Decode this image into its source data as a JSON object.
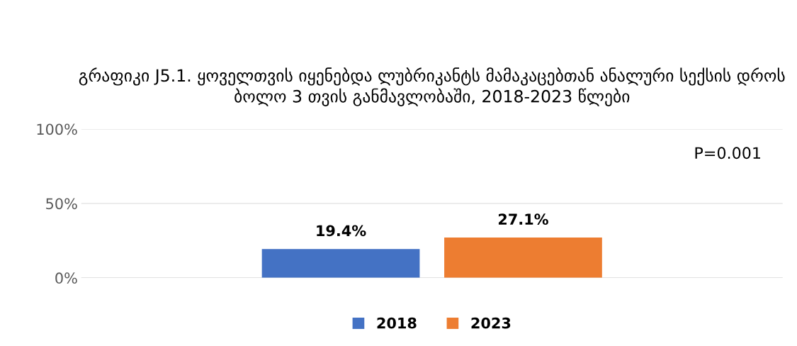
{
  "chart_data": {
    "type": "bar",
    "title": "გრაფიკი J5.1. ყოველთვის იყენებდა ლუბრიკანტს მამაკაცებთან ანალური სექსის დროს ბოლო 3 თვის განმავლობაში, 2018-2023 წლები",
    "categories": [
      null
    ],
    "series": [
      {
        "name": "2018",
        "color": "#4472c4",
        "values": [
          19.4
        ],
        "value_labels": [
          "19.4%"
        ]
      },
      {
        "name": "2023",
        "color": "#ed7d31",
        "values": [
          27.1
        ],
        "value_labels": [
          "27.1%"
        ]
      }
    ],
    "ylim": [
      0,
      100
    ],
    "yticks": [
      {
        "value": 0,
        "label": "0%"
      },
      {
        "value": 50,
        "label": "50%"
      },
      {
        "value": 100,
        "label": "100%"
      }
    ],
    "grid": "y",
    "legend": "bottom",
    "annotations": [
      "P=0.001"
    ]
  }
}
